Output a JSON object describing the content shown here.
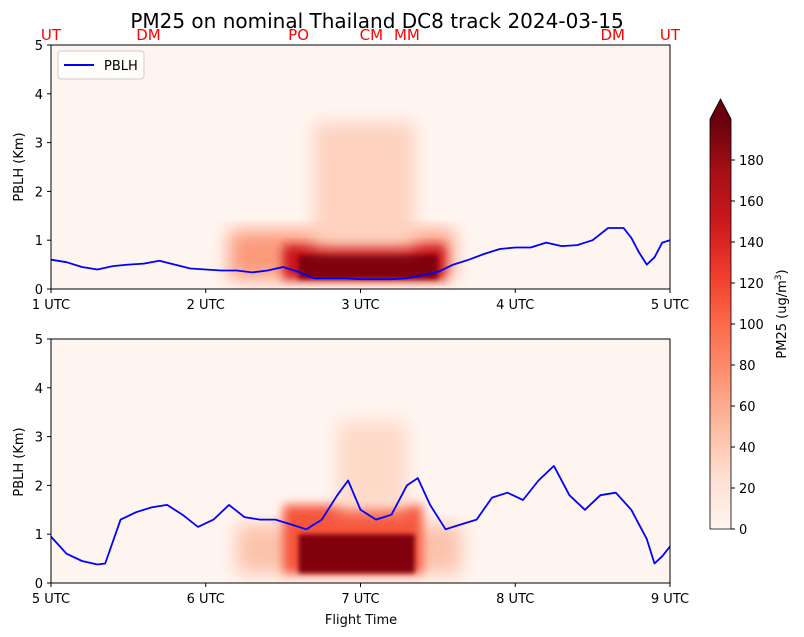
{
  "title": "PM25 on nominal Thailand DC8 track 2024-03-15",
  "colors": {
    "pblh_line": "#0000ff",
    "site_label": "#ff0000",
    "colormap": "Reds"
  },
  "chart_data": [
    {
      "type": "heatmap",
      "panel": "top",
      "ylabel": "PBLH (Km)",
      "xlabel": "",
      "x_range_utc": [
        1,
        5
      ],
      "ylim": [
        0,
        5
      ],
      "yticks": [
        "0",
        "1",
        "2",
        "3",
        "4",
        "5"
      ],
      "xticks": [
        {
          "hour": 1,
          "label": "1 UTC"
        },
        {
          "hour": 2,
          "label": "2 UTC"
        },
        {
          "hour": 3,
          "label": "3 UTC"
        },
        {
          "hour": 4,
          "label": "4 UTC"
        },
        {
          "hour": 5,
          "label": "5 UTC"
        }
      ],
      "legend": {
        "placement": "upper-left",
        "entries": [
          "PBLH"
        ]
      },
      "site_labels": [
        {
          "hour": 1.0,
          "label": "UT"
        },
        {
          "hour": 1.63,
          "label": "DM"
        },
        {
          "hour": 2.6,
          "label": "PO"
        },
        {
          "hour": 3.07,
          "label": "CM"
        },
        {
          "hour": 3.3,
          "label": "MM"
        },
        {
          "hour": 4.63,
          "label": "DM"
        },
        {
          "hour": 5.0,
          "label": "UT"
        }
      ],
      "pm25_plume_zones": [
        {
          "hour_start": 2.15,
          "hour_end": 3.6,
          "alt_bottom_km": 0.2,
          "alt_top_km": 1.2,
          "pm25": 70
        },
        {
          "hour_start": 2.5,
          "hour_end": 3.55,
          "alt_bottom_km": 0.2,
          "alt_top_km": 0.9,
          "pm25": 150
        },
        {
          "hour_start": 2.6,
          "hour_end": 3.5,
          "alt_bottom_km": 0.2,
          "alt_top_km": 0.7,
          "pm25": 190
        },
        {
          "hour_start": 2.7,
          "hour_end": 3.35,
          "alt_bottom_km": 0.9,
          "alt_top_km": 3.4,
          "pm25": 35
        }
      ],
      "pblh_series": {
        "name": "PBLH",
        "x": [
          1.0,
          1.1,
          1.2,
          1.3,
          1.4,
          1.5,
          1.6,
          1.7,
          1.8,
          1.9,
          2.0,
          2.1,
          2.2,
          2.3,
          2.4,
          2.5,
          2.6,
          2.7,
          2.8,
          2.9,
          3.0,
          3.1,
          3.2,
          3.3,
          3.4,
          3.5,
          3.6,
          3.7,
          3.8,
          3.9,
          4.0,
          4.1,
          4.2,
          4.3,
          4.4,
          4.5,
          4.6,
          4.7,
          4.75,
          4.8,
          4.85,
          4.9,
          4.95,
          5.0
        ],
        "y": [
          0.6,
          0.55,
          0.45,
          0.4,
          0.47,
          0.5,
          0.52,
          0.58,
          0.5,
          0.42,
          0.4,
          0.38,
          0.38,
          0.34,
          0.38,
          0.45,
          0.35,
          0.22,
          0.22,
          0.22,
          0.2,
          0.2,
          0.2,
          0.22,
          0.28,
          0.35,
          0.5,
          0.6,
          0.72,
          0.82,
          0.85,
          0.85,
          0.95,
          0.88,
          0.9,
          1.0,
          1.25,
          1.25,
          1.05,
          0.75,
          0.5,
          0.65,
          0.95,
          1.0
        ]
      }
    },
    {
      "type": "heatmap",
      "panel": "bottom",
      "ylabel": "PBLH (Km)",
      "xlabel": "Flight Time",
      "x_range_utc": [
        5,
        9
      ],
      "ylim": [
        0,
        5
      ],
      "yticks": [
        "0",
        "1",
        "2",
        "3",
        "4",
        "5"
      ],
      "xticks": [
        {
          "hour": 5,
          "label": "5 UTC"
        },
        {
          "hour": 6,
          "label": "6 UTC"
        },
        {
          "hour": 7,
          "label": "7 UTC"
        },
        {
          "hour": 8,
          "label": "8 UTC"
        },
        {
          "hour": 9,
          "label": "9 UTC"
        }
      ],
      "pm25_plume_zones": [
        {
          "hour_start": 6.2,
          "hour_end": 7.65,
          "alt_bottom_km": 0.2,
          "alt_top_km": 1.2,
          "pm25": 45
        },
        {
          "hour_start": 6.5,
          "hour_end": 7.4,
          "alt_bottom_km": 0.2,
          "alt_top_km": 1.6,
          "pm25": 110
        },
        {
          "hour_start": 6.6,
          "hour_end": 7.35,
          "alt_bottom_km": 0.2,
          "alt_top_km": 1.0,
          "pm25": 190
        },
        {
          "hour_start": 6.85,
          "hour_end": 7.3,
          "alt_bottom_km": 1.5,
          "alt_top_km": 3.3,
          "pm25": 30
        }
      ],
      "pblh_series": {
        "name": "PBLH",
        "x": [
          5.0,
          5.1,
          5.2,
          5.3,
          5.35,
          5.45,
          5.55,
          5.65,
          5.75,
          5.85,
          5.95,
          6.05,
          6.15,
          6.25,
          6.35,
          6.45,
          6.55,
          6.65,
          6.75,
          6.85,
          6.92,
          7.0,
          7.1,
          7.2,
          7.3,
          7.37,
          7.45,
          7.55,
          7.65,
          7.75,
          7.85,
          7.95,
          8.05,
          8.15,
          8.25,
          8.35,
          8.45,
          8.55,
          8.65,
          8.75,
          8.85,
          8.9,
          8.95,
          9.0
        ],
        "y": [
          0.95,
          0.6,
          0.45,
          0.38,
          0.4,
          1.3,
          1.45,
          1.55,
          1.6,
          1.4,
          1.15,
          1.3,
          1.6,
          1.35,
          1.3,
          1.3,
          1.2,
          1.1,
          1.3,
          1.8,
          2.1,
          1.5,
          1.3,
          1.4,
          2.0,
          2.15,
          1.6,
          1.1,
          1.2,
          1.3,
          1.75,
          1.85,
          1.7,
          2.1,
          2.4,
          1.8,
          1.5,
          1.8,
          1.85,
          1.5,
          0.9,
          0.4,
          0.55,
          0.75
        ]
      }
    }
  ],
  "colorbar": {
    "label_text": "PM25 (ug/m",
    "label_superscript": "3",
    "label_close": ")",
    "min": 0,
    "max": 200,
    "extend": "max",
    "ticks": [
      "0",
      "20",
      "40",
      "60",
      "80",
      "100",
      "120",
      "140",
      "160",
      "180"
    ]
  }
}
